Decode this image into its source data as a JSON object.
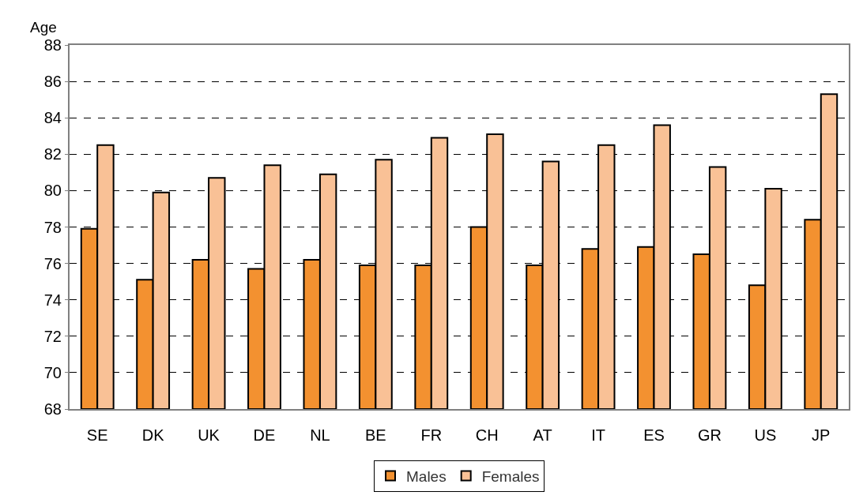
{
  "chart_data": {
    "type": "bar",
    "ylabel": "Age",
    "categories": [
      "SE",
      "DK",
      "UK",
      "DE",
      "NL",
      "BE",
      "FR",
      "CH",
      "AT",
      "IT",
      "ES",
      "GR",
      "US",
      "JP"
    ],
    "series": [
      {
        "name": "Males",
        "color": "#f39130",
        "values": [
          77.9,
          75.1,
          76.2,
          75.7,
          76.2,
          75.9,
          75.9,
          78.0,
          75.9,
          76.8,
          76.9,
          76.5,
          74.8,
          78.4
        ]
      },
      {
        "name": "Females",
        "color": "#f9c196",
        "values": [
          82.5,
          79.9,
          80.7,
          81.4,
          80.9,
          81.7,
          82.9,
          83.1,
          81.6,
          82.5,
          83.6,
          81.3,
          80.1,
          85.3
        ]
      }
    ],
    "ylim": [
      68,
      88
    ],
    "yticks": [
      68,
      70,
      72,
      74,
      76,
      78,
      80,
      82,
      84,
      86,
      88
    ],
    "grid": "y",
    "legend": "bottom"
  }
}
